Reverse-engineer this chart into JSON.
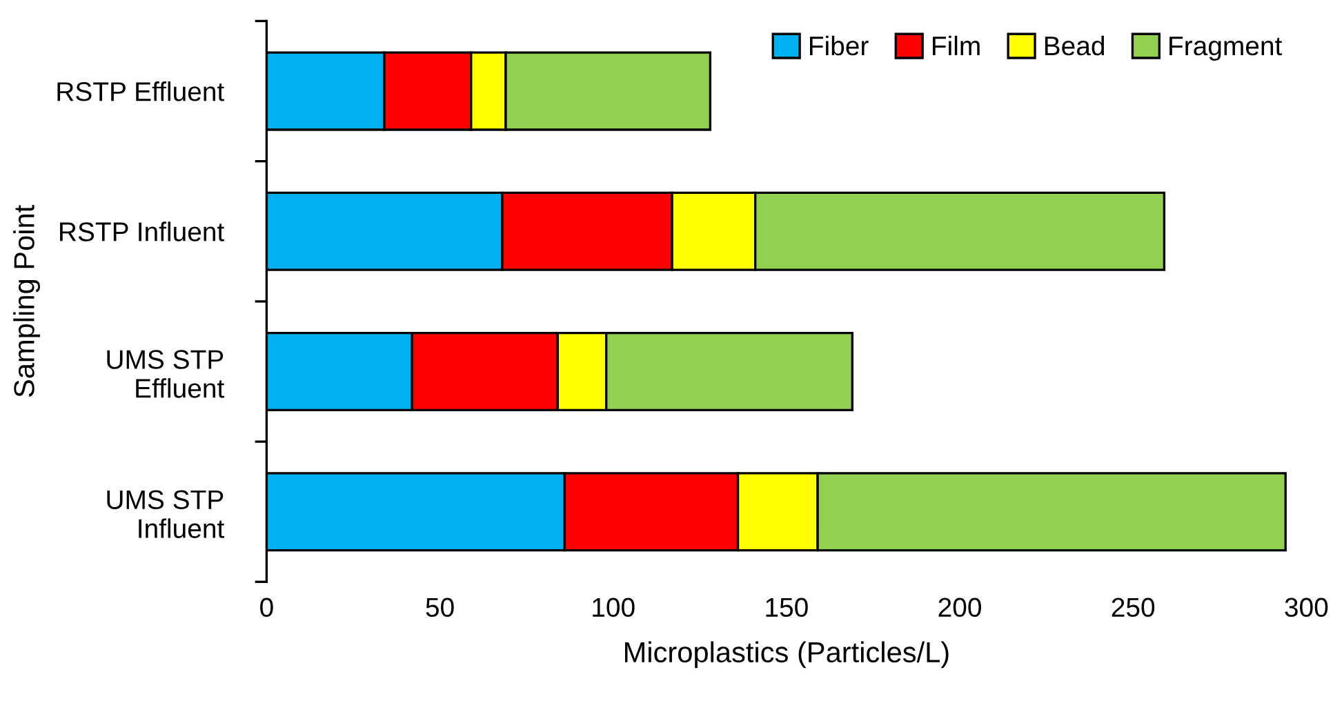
{
  "chart_data": {
    "type": "bar",
    "orientation": "horizontal",
    "stacked": true,
    "xlabel": "Microplastics (Particles/L)",
    "ylabel": "Sampling Point",
    "categories": [
      "RSTP Effluent",
      "RSTP Influent",
      "UMS STP\nEffluent",
      "UMS STP\nInfluent"
    ],
    "series": [
      {
        "name": "Fiber",
        "color": "#00b0f0",
        "values": [
          34,
          68,
          42,
          86
        ]
      },
      {
        "name": "Film",
        "color": "#ff0000",
        "values": [
          25,
          49,
          42,
          50
        ]
      },
      {
        "name": "Bead",
        "color": "#ffff00",
        "values": [
          10,
          24,
          14,
          23
        ]
      },
      {
        "name": "Fragment",
        "color": "#92d050",
        "values": [
          59,
          118,
          71,
          135
        ]
      }
    ],
    "xlim": [
      0,
      300
    ],
    "xticks": [
      0,
      50,
      100,
      150,
      200,
      250,
      300
    ],
    "grid": false,
    "legend": "top right"
  }
}
